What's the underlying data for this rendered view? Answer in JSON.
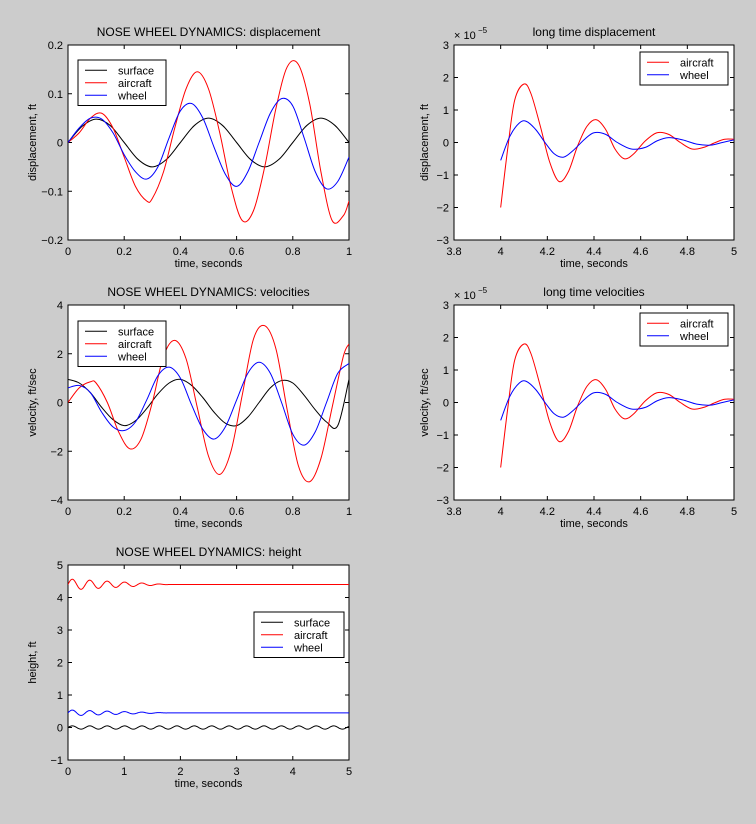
{
  "figure": {
    "background": "#cccccc"
  },
  "colors": {
    "surface": "#000000",
    "aircraft": "#ff0000",
    "wheel": "#0000ff",
    "axes_bg": "#ffffff"
  },
  "chart_data": [
    {
      "id": "disp",
      "type": "line",
      "title": "NOSE WHEEL DYNAMICS: displacement",
      "xlabel": "time, seconds",
      "ylabel": "displacement, ft",
      "xlim": [
        0,
        1
      ],
      "ylim": [
        -0.2,
        0.2
      ],
      "xticks": [
        0,
        0.2,
        0.4,
        0.6,
        0.8,
        1
      ],
      "xtick_labels": [
        "0",
        "0.2",
        "0.4",
        "0.6",
        "0.8",
        "1"
      ],
      "yticks": [
        -0.2,
        -0.1,
        0,
        0.1,
        0.2
      ],
      "ytick_labels": [
        "−0.2",
        "−0.1",
        "0",
        "0.1",
        "0.2"
      ],
      "legend": {
        "position": "top-left",
        "entries": [
          "surface",
          "aircraft",
          "wheel"
        ]
      },
      "grid": false,
      "series": [
        {
          "name": "surface",
          "color": "#000000",
          "x": [
            0,
            0.05,
            0.1,
            0.15,
            0.2,
            0.25,
            0.3,
            0.35,
            0.4,
            0.45,
            0.5,
            0.55,
            0.6,
            0.65,
            0.7,
            0.75,
            0.8,
            0.85,
            0.9,
            0.95,
            1
          ],
          "y": [
            0,
            0.033,
            0.048,
            0.035,
            0,
            -0.035,
            -0.05,
            -0.035,
            0,
            0.035,
            0.05,
            0.035,
            0,
            -0.035,
            -0.05,
            -0.035,
            0,
            0.035,
            0.05,
            0.035,
            0
          ]
        },
        {
          "name": "aircraft",
          "color": "#ff0000",
          "x": [
            0,
            0.04,
            0.08,
            0.12,
            0.16,
            0.2,
            0.24,
            0.28,
            0.3,
            0.34,
            0.38,
            0.42,
            0.46,
            0.5,
            0.54,
            0.58,
            0.62,
            0.66,
            0.7,
            0.74,
            0.78,
            0.82,
            0.86,
            0.9,
            0.94,
            0.98,
            1
          ],
          "y": [
            0,
            0.02,
            0.05,
            0.06,
            0.03,
            -0.03,
            -0.09,
            -0.12,
            -0.115,
            -0.06,
            0.03,
            0.11,
            0.145,
            0.11,
            0.02,
            -0.09,
            -0.16,
            -0.14,
            -0.05,
            0.07,
            0.155,
            0.16,
            0.08,
            -0.06,
            -0.16,
            -0.15,
            -0.12
          ]
        },
        {
          "name": "wheel",
          "color": "#0000ff",
          "x": [
            0,
            0.04,
            0.08,
            0.12,
            0.16,
            0.2,
            0.24,
            0.28,
            0.32,
            0.36,
            0.4,
            0.44,
            0.48,
            0.52,
            0.56,
            0.6,
            0.64,
            0.68,
            0.72,
            0.76,
            0.8,
            0.84,
            0.88,
            0.92,
            0.96,
            1
          ],
          "y": [
            0,
            0.03,
            0.05,
            0.048,
            0.02,
            -0.025,
            -0.06,
            -0.075,
            -0.05,
            0.01,
            0.065,
            0.08,
            0.05,
            -0.01,
            -0.065,
            -0.09,
            -0.06,
            0,
            0.06,
            0.09,
            0.075,
            0.01,
            -0.06,
            -0.095,
            -0.08,
            -0.03
          ]
        }
      ]
    },
    {
      "id": "longdisp",
      "type": "line",
      "title": "long time displacement",
      "xlabel": "time, seconds",
      "ylabel": "displacement, ft",
      "exponent_label": "× 10",
      "exponent_power": "−5",
      "xlim": [
        3.8,
        5
      ],
      "ylim": [
        -3,
        3
      ],
      "xticks": [
        3.8,
        4,
        4.2,
        4.4,
        4.6,
        4.8,
        5
      ],
      "xtick_labels": [
        "3.8",
        "4",
        "4.2",
        "4.4",
        "4.6",
        "4.8",
        "5"
      ],
      "yticks": [
        -3,
        -2,
        -1,
        0,
        1,
        2,
        3
      ],
      "ytick_labels": [
        "−3",
        "−2",
        "−1",
        "0",
        "1",
        "2",
        "3"
      ],
      "legend": {
        "position": "top-right",
        "entries": [
          "aircraft",
          "wheel"
        ]
      },
      "grid": false,
      "series": [
        {
          "name": "aircraft",
          "color": "#ff0000",
          "x": [
            4,
            4.03,
            4.06,
            4.1,
            4.13,
            4.17,
            4.21,
            4.25,
            4.29,
            4.33,
            4.37,
            4.41,
            4.45,
            4.49,
            4.53,
            4.57,
            4.62,
            4.67,
            4.72,
            4.77,
            4.82,
            4.87,
            4.92,
            4.96,
            5
          ],
          "y": [
            -2.0,
            -0.2,
            1.3,
            1.8,
            1.5,
            0.5,
            -0.6,
            -1.2,
            -0.9,
            -0.1,
            0.5,
            0.7,
            0.4,
            -0.2,
            -0.5,
            -0.35,
            0.05,
            0.3,
            0.25,
            0,
            -0.2,
            -0.15,
            0,
            0.1,
            0.1
          ]
        },
        {
          "name": "wheel",
          "color": "#0000ff",
          "x": [
            4,
            4.04,
            4.08,
            4.11,
            4.15,
            4.19,
            4.23,
            4.27,
            4.31,
            4.36,
            4.4,
            4.45,
            4.5,
            4.56,
            4.62,
            4.67,
            4.72,
            4.78,
            4.84,
            4.9,
            4.95,
            5
          ],
          "y": [
            -0.55,
            0.2,
            0.6,
            0.65,
            0.4,
            0,
            -0.35,
            -0.45,
            -0.25,
            0.1,
            0.3,
            0.25,
            0,
            -0.2,
            -0.15,
            0.05,
            0.15,
            0.08,
            -0.05,
            -0.08,
            0,
            0.08
          ]
        }
      ]
    },
    {
      "id": "vel",
      "type": "line",
      "title": "NOSE WHEEL DYNAMICS: velocities",
      "xlabel": "time, seconds",
      "ylabel": "velocity, ft/sec",
      "xlim": [
        0,
        1
      ],
      "ylim": [
        -4,
        4
      ],
      "xticks": [
        0,
        0.2,
        0.4,
        0.6,
        0.8,
        1
      ],
      "xtick_labels": [
        "0",
        "0.2",
        "0.4",
        "0.6",
        "0.8",
        "1"
      ],
      "yticks": [
        -4,
        -2,
        0,
        2,
        4
      ],
      "ytick_labels": [
        "−4",
        "−2",
        "0",
        "2",
        "4"
      ],
      "legend": {
        "position": "top-left",
        "entries": [
          "surface",
          "aircraft",
          "wheel"
        ]
      },
      "grid": false,
      "series": [
        {
          "name": "surface",
          "color": "#000000",
          "x": [
            0,
            0.04,
            0.08,
            0.12,
            0.16,
            0.2,
            0.24,
            0.28,
            0.32,
            0.36,
            0.4,
            0.44,
            0.48,
            0.52,
            0.56,
            0.6,
            0.64,
            0.68,
            0.72,
            0.76,
            0.8,
            0.84,
            0.88,
            0.92,
            0.96,
            1
          ],
          "y": [
            0.95,
            0.8,
            0.4,
            -0.2,
            -0.7,
            -0.95,
            -0.75,
            -0.25,
            0.35,
            0.8,
            0.95,
            0.7,
            0.2,
            -0.4,
            -0.85,
            -0.95,
            -0.6,
            0,
            0.6,
            0.9,
            0.8,
            0.3,
            -0.3,
            -0.8,
            -0.95,
            0.95
          ]
        },
        {
          "name": "aircraft",
          "color": "#ff0000",
          "x": [
            0,
            0.04,
            0.08,
            0.1,
            0.14,
            0.18,
            0.22,
            0.26,
            0.3,
            0.34,
            0.38,
            0.42,
            0.46,
            0.5,
            0.54,
            0.58,
            0.62,
            0.66,
            0.7,
            0.74,
            0.78,
            0.82,
            0.86,
            0.9,
            0.94,
            0.98,
            1
          ],
          "y": [
            0,
            0.6,
            0.85,
            0.8,
            0,
            -1.2,
            -1.9,
            -1.5,
            0,
            1.9,
            2.55,
            1.8,
            -0.2,
            -2.2,
            -2.95,
            -2.0,
            0.3,
            2.6,
            3.15,
            2.2,
            -0.3,
            -2.6,
            -3.25,
            -2.3,
            -0.2,
            1.9,
            2.4
          ]
        },
        {
          "name": "wheel",
          "color": "#0000ff",
          "x": [
            0,
            0.04,
            0.08,
            0.12,
            0.16,
            0.2,
            0.24,
            0.28,
            0.32,
            0.36,
            0.4,
            0.44,
            0.48,
            0.52,
            0.56,
            0.6,
            0.64,
            0.68,
            0.72,
            0.76,
            0.8,
            0.84,
            0.88,
            0.92,
            0.96,
            1
          ],
          "y": [
            0.6,
            0.7,
            0.4,
            -0.4,
            -1.0,
            -1.15,
            -0.8,
            0.1,
            1.1,
            1.45,
            1.0,
            -0.1,
            -1.1,
            -1.5,
            -1.0,
            0.1,
            1.2,
            1.65,
            1.2,
            0,
            -1.3,
            -1.75,
            -1.2,
            0,
            1.2,
            1.6
          ]
        }
      ]
    },
    {
      "id": "longvel",
      "type": "line",
      "title": "long time velocities",
      "xlabel": "time, seconds",
      "ylabel": "velocity, ft/sec",
      "exponent_label": "× 10",
      "exponent_power": "−5",
      "xlim": [
        3.8,
        5
      ],
      "ylim": [
        -3,
        3
      ],
      "xticks": [
        3.8,
        4,
        4.2,
        4.4,
        4.6,
        4.8,
        5
      ],
      "xtick_labels": [
        "3.8",
        "4",
        "4.2",
        "4.4",
        "4.6",
        "4.8",
        "5"
      ],
      "yticks": [
        -3,
        -2,
        -1,
        0,
        1,
        2,
        3
      ],
      "ytick_labels": [
        "−3",
        "−2",
        "−1",
        "0",
        "1",
        "2",
        "3"
      ],
      "legend": {
        "position": "top-right",
        "entries": [
          "aircraft",
          "wheel"
        ]
      },
      "grid": false,
      "series": [
        {
          "name": "aircraft",
          "color": "#ff0000",
          "x": [
            4,
            4.03,
            4.06,
            4.1,
            4.13,
            4.17,
            4.21,
            4.25,
            4.29,
            4.33,
            4.37,
            4.41,
            4.45,
            4.49,
            4.53,
            4.57,
            4.62,
            4.67,
            4.72,
            4.77,
            4.82,
            4.87,
            4.92,
            4.96,
            5
          ],
          "y": [
            -2.0,
            -0.2,
            1.3,
            1.8,
            1.5,
            0.5,
            -0.6,
            -1.2,
            -0.9,
            -0.1,
            0.5,
            0.7,
            0.4,
            -0.2,
            -0.5,
            -0.35,
            0.05,
            0.3,
            0.25,
            0,
            -0.2,
            -0.15,
            0,
            0.1,
            0.1
          ]
        },
        {
          "name": "wheel",
          "color": "#0000ff",
          "x": [
            4,
            4.04,
            4.08,
            4.11,
            4.15,
            4.19,
            4.23,
            4.27,
            4.31,
            4.36,
            4.4,
            4.45,
            4.5,
            4.56,
            4.62,
            4.67,
            4.72,
            4.78,
            4.84,
            4.9,
            4.95,
            5
          ],
          "y": [
            -0.55,
            0.2,
            0.6,
            0.65,
            0.4,
            0,
            -0.35,
            -0.45,
            -0.25,
            0.1,
            0.3,
            0.25,
            0,
            -0.2,
            -0.15,
            0.05,
            0.15,
            0.08,
            -0.05,
            -0.08,
            0,
            0.08
          ]
        }
      ]
    },
    {
      "id": "height",
      "type": "line",
      "title": "NOSE WHEEL DYNAMICS: height",
      "xlabel": "time, seconds",
      "ylabel": "height, ft",
      "xlim": [
        0,
        5
      ],
      "ylim": [
        -1,
        5
      ],
      "xticks": [
        0,
        1,
        2,
        3,
        4,
        5
      ],
      "xtick_labels": [
        "0",
        "1",
        "2",
        "3",
        "4",
        "5"
      ],
      "yticks": [
        -1,
        0,
        1,
        2,
        3,
        4,
        5
      ],
      "ytick_labels": [
        "−1",
        "0",
        "1",
        "2",
        "3",
        "4",
        "5"
      ],
      "legend": {
        "position": "right",
        "entries": [
          "surface",
          "aircraft",
          "wheel"
        ]
      },
      "grid": false,
      "series": [
        {
          "name": "surface",
          "color": "#000000",
          "base": 0,
          "amplitude": 0.05,
          "period": 0.31,
          "decay": 0,
          "xmax": 5
        },
        {
          "name": "aircraft",
          "color": "#ff0000",
          "base": 4.4,
          "amplitude": 0.17,
          "period": 0.31,
          "decay": 1.8,
          "xmax": 5
        },
        {
          "name": "wheel",
          "color": "#0000ff",
          "base": 0.45,
          "amplitude": 0.09,
          "period": 0.31,
          "decay": 1.8,
          "xmax": 5
        }
      ]
    }
  ]
}
